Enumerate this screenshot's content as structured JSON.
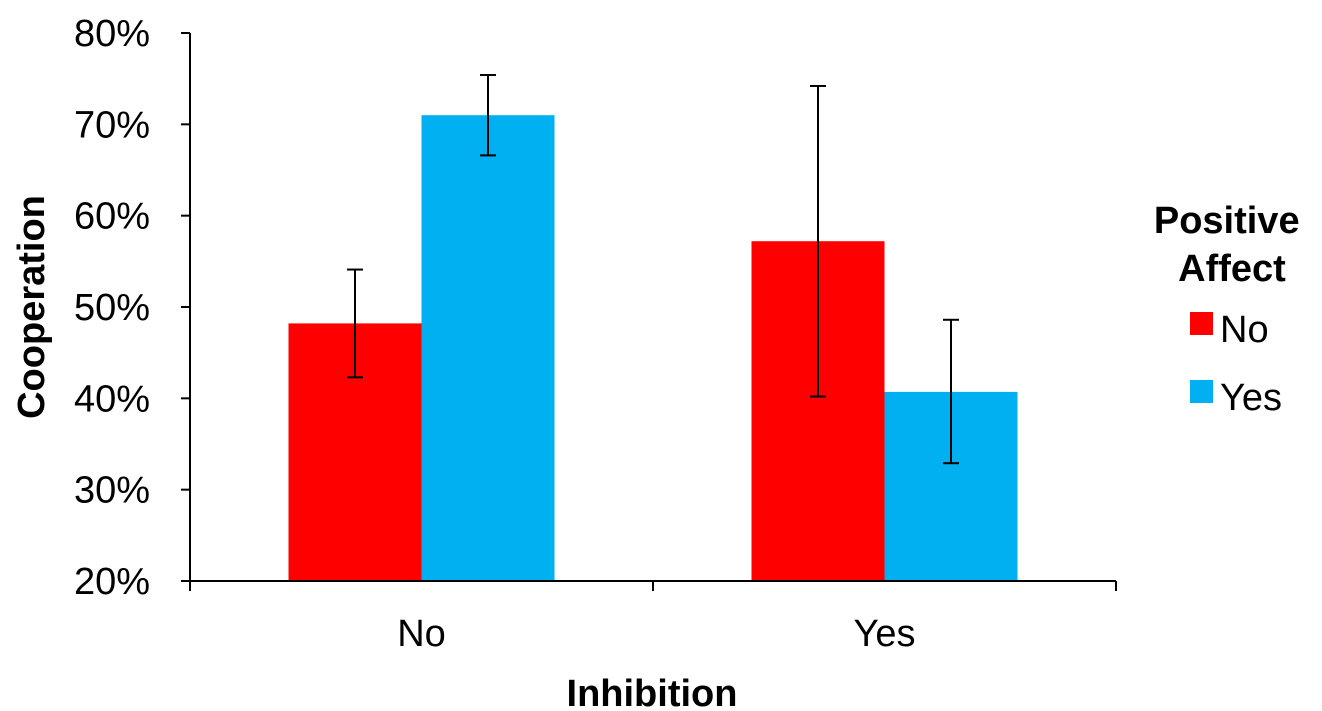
{
  "chart_data": {
    "type": "bar",
    "categories": [
      "No",
      "Yes"
    ],
    "series": [
      {
        "name": "No",
        "color": "#ff0000",
        "values": [
          48.2,
          57.2
        ],
        "error_low": [
          42.3,
          40.2
        ],
        "error_high": [
          54.1,
          74.2
        ]
      },
      {
        "name": "Yes",
        "color": "#00b0f0",
        "values": [
          71.0,
          40.7
        ],
        "error_low": [
          66.6,
          32.9
        ],
        "error_high": [
          75.4,
          48.6
        ]
      }
    ],
    "title": "",
    "xlabel": "Inhibition",
    "ylabel": "Cooperation",
    "ylim": [
      20,
      80
    ],
    "yticks": [
      "20%",
      "30%",
      "40%",
      "50%",
      "60%",
      "70%",
      "80%"
    ],
    "legend": {
      "title": "Positive Affect",
      "title_lines": [
        "Positive",
        "Affect"
      ],
      "position": "right"
    },
    "grid": false
  }
}
